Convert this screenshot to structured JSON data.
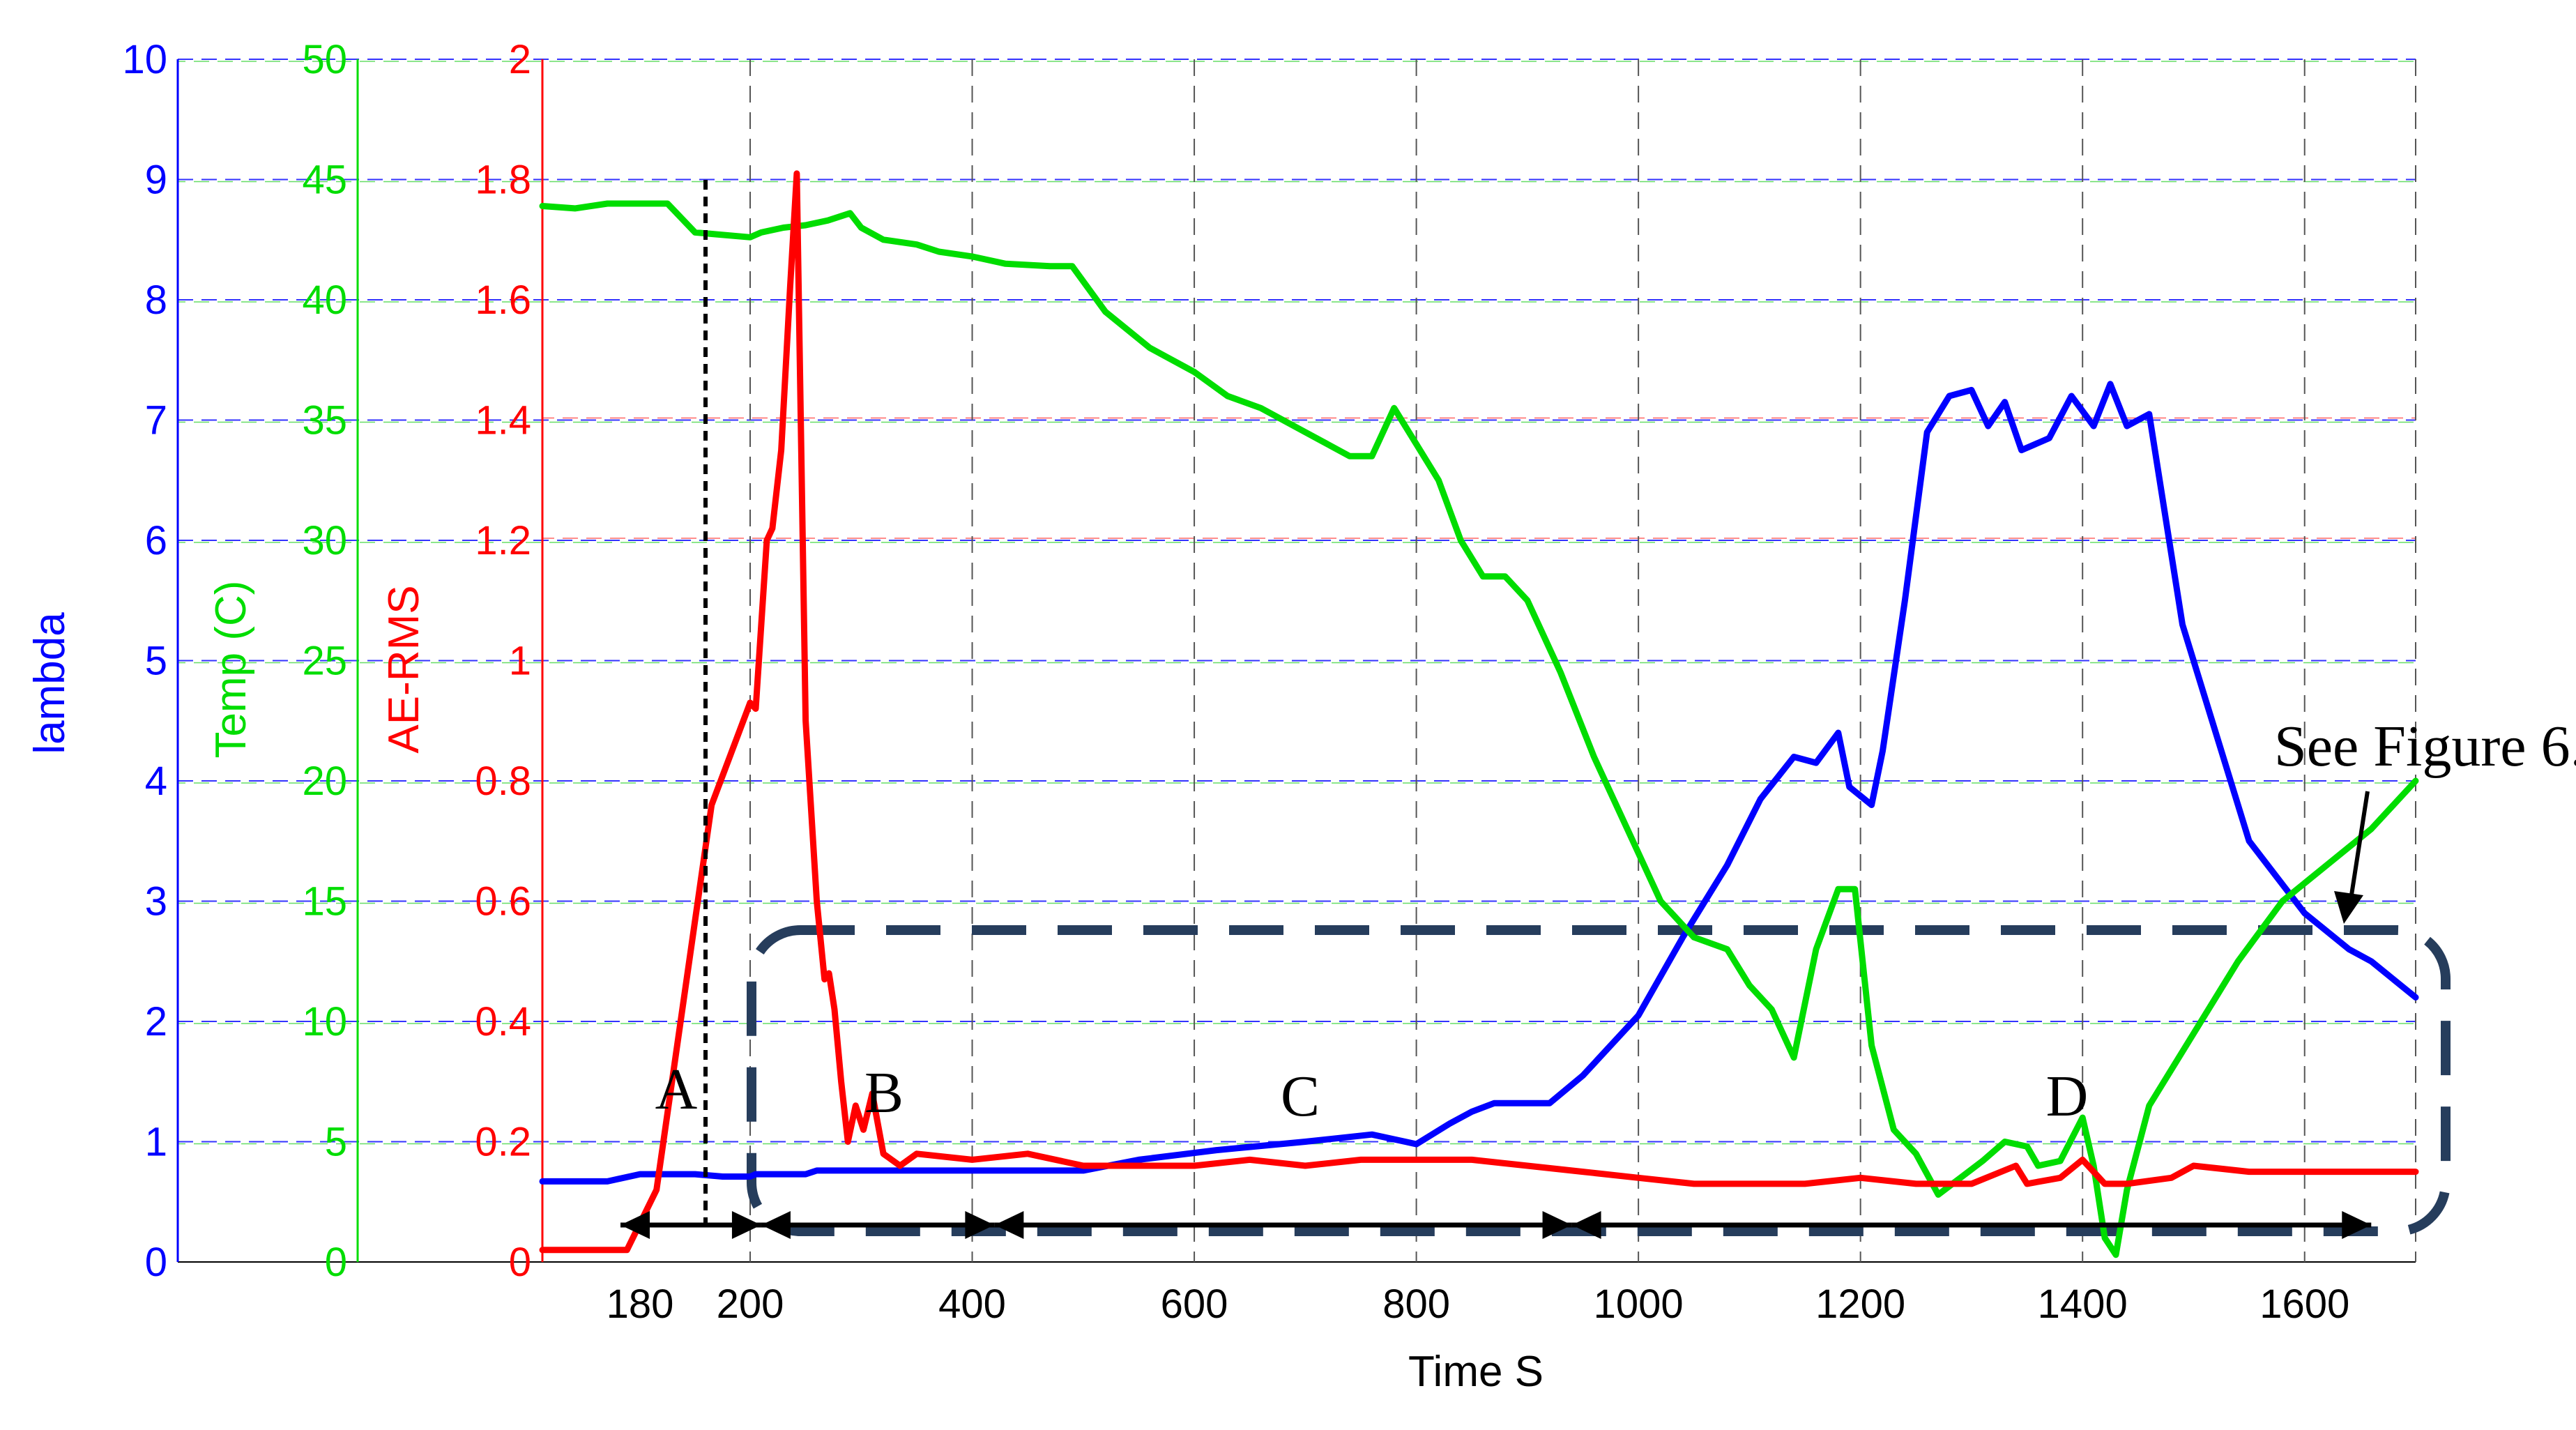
{
  "chart_data": {
    "type": "line",
    "xlabel": "Time S",
    "x_ticks": [
      "180",
      "200",
      "400",
      "600",
      "800",
      "1000",
      "1200",
      "1400",
      "1600"
    ],
    "axes": [
      {
        "name": "lambda",
        "label": "lambda",
        "color": "#0000ff",
        "range": [
          0,
          10
        ],
        "ticks": [
          "0",
          "1",
          "2",
          "3",
          "4",
          "5",
          "6",
          "7",
          "8",
          "9",
          "10"
        ]
      },
      {
        "name": "temp",
        "label": "Temp (C)",
        "color": "#00dd00",
        "range": [
          0,
          50
        ],
        "ticks": [
          "0",
          "5",
          "10",
          "15",
          "20",
          "25",
          "30",
          "35",
          "40",
          "45",
          "50"
        ]
      },
      {
        "name": "ae",
        "label": "AE-RMS",
        "color": "#ff0000",
        "range": [
          0,
          2
        ],
        "ticks": [
          "0",
          "0.2",
          "0.4",
          "0.6",
          "0.8",
          "1",
          "1.2",
          "1.4",
          "1.6",
          "1.8",
          "2"
        ]
      }
    ],
    "grid": true,
    "series": [
      {
        "axis": "lambda",
        "color": "#0000ff",
        "points": [
          [
            165,
            0.67
          ],
          [
            175,
            0.67
          ],
          [
            180,
            0.73
          ],
          [
            190,
            0.73
          ],
          [
            195,
            0.71
          ],
          [
            200,
            0.71
          ],
          [
            205,
            0.73
          ],
          [
            250,
            0.73
          ],
          [
            260,
            0.76
          ],
          [
            400,
            0.76
          ],
          [
            500,
            0.76
          ],
          [
            550,
            0.85
          ],
          [
            620,
            0.93
          ],
          [
            700,
            1.0
          ],
          [
            760,
            1.06
          ],
          [
            790,
            1.0
          ],
          [
            800,
            0.98
          ],
          [
            830,
            1.15
          ],
          [
            850,
            1.25
          ],
          [
            870,
            1.32
          ],
          [
            920,
            1.32
          ],
          [
            950,
            1.55
          ],
          [
            1000,
            2.05
          ],
          [
            1040,
            2.7
          ],
          [
            1080,
            3.3
          ],
          [
            1110,
            3.85
          ],
          [
            1140,
            4.2
          ],
          [
            1160,
            4.15
          ],
          [
            1180,
            4.4
          ],
          [
            1190,
            3.95
          ],
          [
            1210,
            3.8
          ],
          [
            1220,
            4.25
          ],
          [
            1240,
            5.5
          ],
          [
            1260,
            6.9
          ],
          [
            1280,
            7.2
          ],
          [
            1300,
            7.25
          ],
          [
            1315,
            6.95
          ],
          [
            1330,
            7.15
          ],
          [
            1345,
            6.75
          ],
          [
            1370,
            6.85
          ],
          [
            1390,
            7.2
          ],
          [
            1410,
            6.95
          ],
          [
            1425,
            7.3
          ],
          [
            1440,
            6.95
          ],
          [
            1460,
            7.05
          ],
          [
            1490,
            5.3
          ],
          [
            1550,
            3.5
          ],
          [
            1600,
            2.9
          ],
          [
            1640,
            2.6
          ],
          [
            1660,
            2.5
          ],
          [
            1700,
            2.2
          ]
        ]
      },
      {
        "axis": "temp",
        "color": "#00dd00",
        "points": [
          [
            165,
            43.9
          ],
          [
            170,
            43.8
          ],
          [
            175,
            44.0
          ],
          [
            185,
            44.0
          ],
          [
            190,
            42.8
          ],
          [
            200,
            42.6
          ],
          [
            210,
            42.8
          ],
          [
            230,
            43.0
          ],
          [
            250,
            43.1
          ],
          [
            270,
            43.3
          ],
          [
            290,
            43.6
          ],
          [
            300,
            43.0
          ],
          [
            320,
            42.5
          ],
          [
            350,
            42.3
          ],
          [
            370,
            42.0
          ],
          [
            400,
            41.8
          ],
          [
            430,
            41.5
          ],
          [
            470,
            41.4
          ],
          [
            490,
            41.4
          ],
          [
            520,
            39.5
          ],
          [
            560,
            38.0
          ],
          [
            600,
            37.0
          ],
          [
            630,
            36.0
          ],
          [
            660,
            35.5
          ],
          [
            700,
            34.5
          ],
          [
            740,
            33.5
          ],
          [
            760,
            33.5
          ],
          [
            780,
            35.5
          ],
          [
            800,
            34.0
          ],
          [
            820,
            32.5
          ],
          [
            840,
            30.0
          ],
          [
            860,
            28.5
          ],
          [
            880,
            28.5
          ],
          [
            900,
            27.5
          ],
          [
            930,
            24.5
          ],
          [
            960,
            21.0
          ],
          [
            990,
            18.0
          ],
          [
            1020,
            15.0
          ],
          [
            1050,
            13.5
          ],
          [
            1080,
            13.0
          ],
          [
            1100,
            11.5
          ],
          [
            1120,
            10.5
          ],
          [
            1140,
            8.5
          ],
          [
            1160,
            13.0
          ],
          [
            1180,
            15.5
          ],
          [
            1195,
            15.5
          ],
          [
            1210,
            9.0
          ],
          [
            1230,
            5.5
          ],
          [
            1250,
            4.5
          ],
          [
            1270,
            2.8
          ],
          [
            1290,
            3.5
          ],
          [
            1310,
            4.2
          ],
          [
            1330,
            5.0
          ],
          [
            1350,
            4.8
          ],
          [
            1360,
            4.0
          ],
          [
            1380,
            4.2
          ],
          [
            1400,
            6.0
          ],
          [
            1410,
            4.0
          ],
          [
            1420,
            1.0
          ],
          [
            1430,
            0.3
          ],
          [
            1440,
            3.0
          ],
          [
            1460,
            6.5
          ],
          [
            1500,
            9.5
          ],
          [
            1540,
            12.5
          ],
          [
            1580,
            15.0
          ],
          [
            1620,
            16.5
          ],
          [
            1660,
            18.0
          ],
          [
            1700,
            20.0
          ]
        ]
      },
      {
        "axis": "ae",
        "color": "#ff0000",
        "points": [
          [
            165,
            0.02
          ],
          [
            178,
            0.02
          ],
          [
            183,
            0.12
          ],
          [
            193,
            0.76
          ],
          [
            200,
            0.93
          ],
          [
            205,
            0.92
          ],
          [
            215,
            1.2
          ],
          [
            220,
            1.22
          ],
          [
            228,
            1.35
          ],
          [
            236,
            1.62
          ],
          [
            242,
            1.81
          ],
          [
            250,
            0.9
          ],
          [
            260,
            0.6
          ],
          [
            267,
            0.47
          ],
          [
            271,
            0.48
          ],
          [
            276,
            0.42
          ],
          [
            282,
            0.3
          ],
          [
            288,
            0.2
          ],
          [
            295,
            0.26
          ],
          [
            302,
            0.22
          ],
          [
            310,
            0.28
          ],
          [
            320,
            0.18
          ],
          [
            335,
            0.16
          ],
          [
            350,
            0.18
          ],
          [
            400,
            0.17
          ],
          [
            450,
            0.18
          ],
          [
            500,
            0.16
          ],
          [
            550,
            0.16
          ],
          [
            600,
            0.16
          ],
          [
            650,
            0.17
          ],
          [
            700,
            0.16
          ],
          [
            750,
            0.17
          ],
          [
            800,
            0.17
          ],
          [
            850,
            0.17
          ],
          [
            900,
            0.16
          ],
          [
            950,
            0.15
          ],
          [
            1000,
            0.14
          ],
          [
            1050,
            0.13
          ],
          [
            1100,
            0.13
          ],
          [
            1150,
            0.13
          ],
          [
            1200,
            0.14
          ],
          [
            1250,
            0.13
          ],
          [
            1300,
            0.13
          ],
          [
            1340,
            0.16
          ],
          [
            1350,
            0.13
          ],
          [
            1380,
            0.14
          ],
          [
            1400,
            0.17
          ],
          [
            1420,
            0.13
          ],
          [
            1440,
            0.13
          ],
          [
            1480,
            0.14
          ],
          [
            1500,
            0.16
          ],
          [
            1550,
            0.15
          ],
          [
            1600,
            0.15
          ],
          [
            1650,
            0.15
          ],
          [
            1700,
            0.15
          ]
        ]
      }
    ],
    "phase_arrows": [
      {
        "label": "A",
        "from": 180,
        "to": 210
      },
      {
        "label": "B",
        "from": 210,
        "to": 420
      },
      {
        "label": "C",
        "from": 420,
        "to": 940
      },
      {
        "label": "D",
        "from": 940,
        "to": 1660
      }
    ],
    "annotation": "See Figure 6."
  }
}
